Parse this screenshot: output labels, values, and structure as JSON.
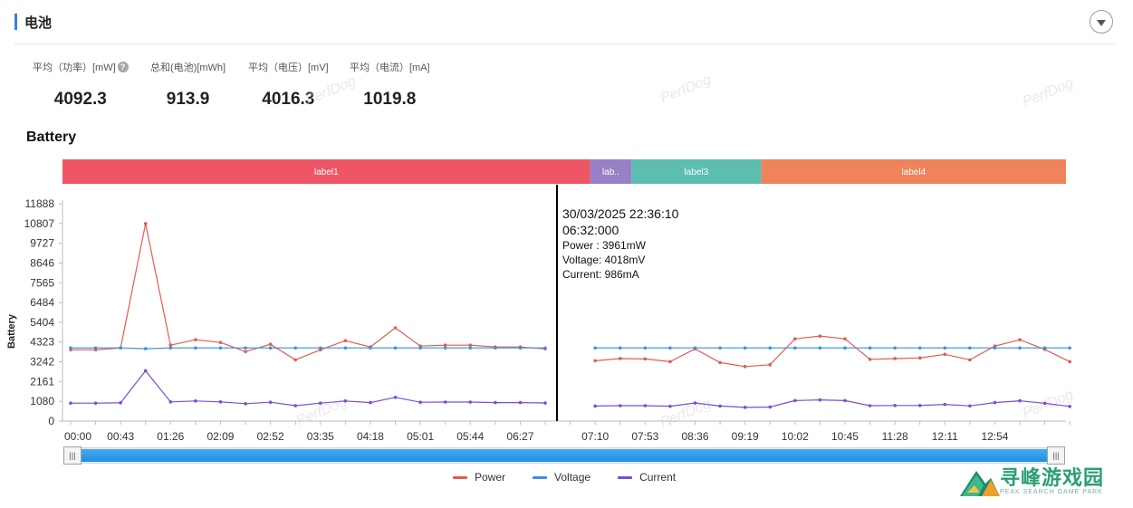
{
  "section": {
    "title": "电池"
  },
  "stats": [
    {
      "label": "平均（功率）[mW]",
      "value": "4092.3",
      "help": "?"
    },
    {
      "label": "总和(电池)[mWh]",
      "value": "913.9"
    },
    {
      "label": "平均（电压）[mV]",
      "value": "4016.3"
    },
    {
      "label": "平均（电流）[mA]",
      "value": "1019.8"
    }
  ],
  "watermark": "PerfDog",
  "logo": {
    "cn": "寻峰游戏园",
    "en": "PEAK SEARCH GAME PARK"
  },
  "colors": {
    "power": "#e25c4f",
    "voltage": "#3d8ee6",
    "current": "#7b4fd0",
    "accent": "#3b7ddd"
  },
  "tooltip": {
    "datetime": "30/03/2025 22:36:10",
    "time": "06:32:000",
    "lines": [
      "Power  : 3961mW",
      "Voltage: 4018mV",
      "Current: 986mA"
    ],
    "cursor_index": 19.47
  },
  "chart_data": {
    "type": "line",
    "title": "Battery",
    "ylabel": "Battery",
    "ylim": [
      0,
      11888
    ],
    "yticks": [
      0,
      1080,
      2161,
      3242,
      4323,
      5404,
      6484,
      7565,
      8646,
      9727,
      10807,
      11888
    ],
    "xticks": [
      "00:00",
      "00:43",
      "01:26",
      "02:09",
      "02:52",
      "03:35",
      "04:18",
      "05:01",
      "05:44",
      "06:27",
      "07:10",
      "07:53",
      "08:36",
      "09:19",
      "10:02",
      "10:45",
      "11:28",
      "12:11",
      "12:54"
    ],
    "label_bands": [
      {
        "name": "label1",
        "start": 0,
        "end": 20.8,
        "color": "#ee5565"
      },
      {
        "name": "lab..",
        "start": 20.8,
        "end": 22.45,
        "color": "#9880c4"
      },
      {
        "name": "label3",
        "start": 22.45,
        "end": 27.65,
        "color": "#5dbdb0"
      },
      {
        "name": "label4",
        "start": 27.65,
        "end": 40,
        "color": "#ee835c"
      }
    ],
    "series": [
      {
        "name": "Power",
        "segments": [
          {
            "start": 0,
            "values": [
              3900,
              3900,
              4000,
              10800,
              4150,
              4450,
              4300,
              3800,
              4200,
              3350,
              3900,
              4400,
              4050,
              5100,
              4100,
              4150,
              4150,
              4050,
              4050,
              3950
            ]
          },
          {
            "start": 21,
            "values": [
              3300,
              3420,
              3400,
              3250,
              3950,
              3200,
              2980,
              3080,
              4500,
              4650,
              4500,
              3380,
              3420,
              3450,
              3650,
              3350,
              4100,
              4450,
              3920,
              3250
            ]
          }
        ]
      },
      {
        "name": "Voltage",
        "segments": [
          {
            "start": 0,
            "values": [
              4000,
              4000,
              4000,
              3960,
              4000,
              4000,
              4000,
              4000,
              4000,
              4000,
              4000,
              4000,
              4000,
              4000,
              4000,
              4000,
              4000,
              4000,
              4000,
              4000
            ]
          },
          {
            "start": 21,
            "values": [
              4000,
              4000,
              4000,
              4000,
              4000,
              4000,
              4000,
              4000,
              4000,
              4000,
              4000,
              4000,
              4000,
              4000,
              4000,
              4000,
              4000,
              4000,
              4000,
              4000
            ]
          }
        ]
      },
      {
        "name": "Current",
        "segments": [
          {
            "start": 0,
            "values": [
              980,
              980,
              1000,
              2750,
              1050,
              1100,
              1050,
              950,
              1030,
              840,
              980,
              1100,
              1010,
              1300,
              1030,
              1040,
              1040,
              1010,
              1010,
              990
            ]
          },
          {
            "start": 21,
            "values": [
              820,
              840,
              840,
              810,
              990,
              820,
              750,
              770,
              1120,
              1160,
              1120,
              840,
              850,
              850,
              910,
              830,
              1010,
              1110,
              970,
              800
            ]
          }
        ]
      }
    ]
  }
}
